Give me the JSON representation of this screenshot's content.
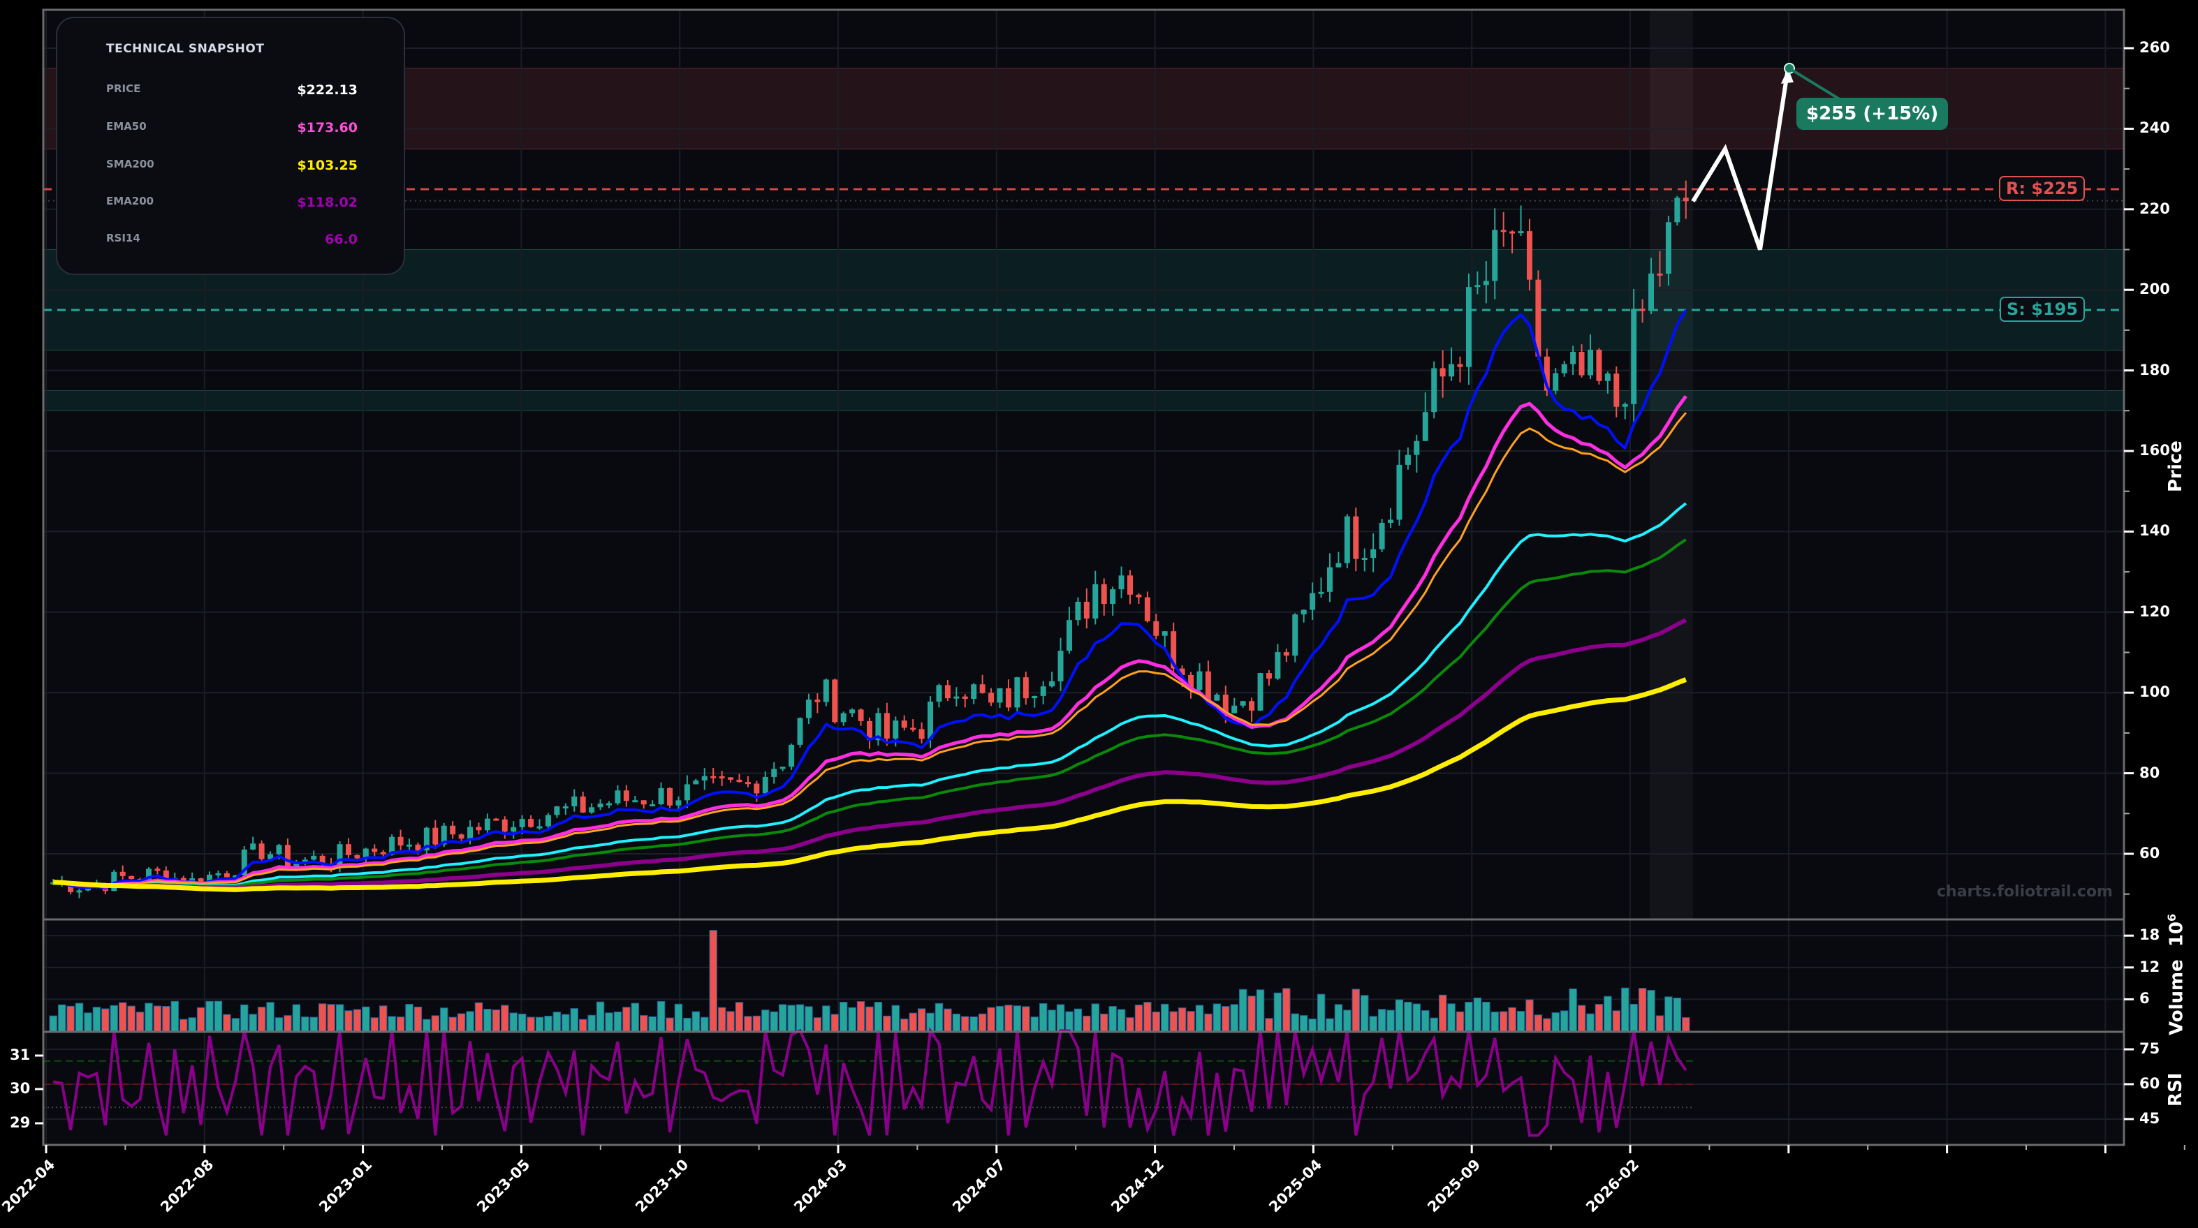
{
  "snapshot": {
    "title": "TECHNICAL SNAPSHOT",
    "rows": [
      {
        "label": "PRICE",
        "value": "$222.13",
        "color": "#ffffff"
      },
      {
        "label": "EMA50",
        "value": "$173.60",
        "color": "#ff4fd8"
      },
      {
        "label": "SMA200",
        "value": "$103.25",
        "color": "#ffee00"
      },
      {
        "label": "EMA200",
        "value": "$118.02",
        "color": "#a000b0"
      },
      {
        "label": "RSI14",
        "value": "66.0",
        "color": "#a000b0"
      }
    ]
  },
  "levels": {
    "resistance": {
      "label": "R: $225",
      "value": 225,
      "color": "#e05252"
    },
    "support": {
      "label": "S: $195",
      "value": 195,
      "color": "#26a69a"
    }
  },
  "target": {
    "label": "$255 (+15%)",
    "value": 255,
    "color": "#1a7a60"
  },
  "watermark": "charts.foliotrail.com",
  "axes": {
    "price_label": "Price",
    "volume_label": "Volume",
    "volume_exp": "6",
    "volume_base": "10",
    "rsi_label": "RSI"
  },
  "colors": {
    "up": "#26a69a",
    "down": "#ef5350",
    "background": "#080a0f",
    "frame": "#6b6b6b"
  },
  "chart_data": {
    "type": "candlestick",
    "title": "",
    "xlabel": "",
    "ylabel": "Price",
    "ylim": [
      48,
      270
    ],
    "x_ticks": [
      "2022-04",
      "2022-08",
      "2023-01",
      "2023-05",
      "2023-10",
      "2024-03",
      "2024-07",
      "2024-12",
      "2025-04",
      "2025-09",
      "2026-02"
    ],
    "y_ticks": [
      60,
      80,
      100,
      120,
      140,
      160,
      180,
      200,
      220,
      240,
      260
    ],
    "candles_monthly_approx": {
      "dates": [
        "2022-04",
        "2022-05",
        "2022-06",
        "2022-07",
        "2022-08",
        "2022-09",
        "2022-10",
        "2022-11",
        "2022-12",
        "2023-01",
        "2023-02",
        "2023-03",
        "2023-04",
        "2023-05",
        "2023-06",
        "2023-07",
        "2023-08",
        "2023-09",
        "2023-10",
        "2023-11",
        "2023-12",
        "2024-01",
        "2024-02",
        "2024-03",
        "2024-04",
        "2024-05",
        "2024-06",
        "2024-07",
        "2024-08",
        "2024-09",
        "2024-10",
        "2024-11",
        "2024-12",
        "2025-01",
        "2025-02",
        "2025-03",
        "2025-04",
        "2025-05",
        "2025-06",
        "2025-07",
        "2025-08",
        "2025-09",
        "2025-10",
        "2025-11",
        "2025-12",
        "2026-01",
        "2026-02",
        "2026-03"
      ],
      "close": [
        53,
        52,
        54,
        55,
        53,
        56,
        61,
        58,
        59,
        61,
        63,
        64,
        66,
        68,
        70,
        71,
        73,
        74,
        75,
        76,
        77,
        84,
        100,
        95,
        89,
        92,
        104,
        96,
        102,
        110,
        127,
        130,
        112,
        104,
        97,
        104,
        118,
        138,
        140,
        160,
        178,
        198,
        215,
        175,
        178,
        172,
        201,
        222
      ]
    },
    "moving_averages": [
      {
        "name": "EMA20",
        "color": "#0010ff",
        "end": 195
      },
      {
        "name": "EMA50",
        "color": "#ff2ee0",
        "end": 173.6
      },
      {
        "name": "EMA60",
        "color": "#ffa020",
        "end": 169.5
      },
      {
        "name": "EMA100",
        "color": "#20f0ff",
        "end": 147
      },
      {
        "name": "SMA150",
        "color": "#0a8a0a",
        "end": 138
      },
      {
        "name": "EMA200",
        "color": "#8a008a",
        "end": 118.02
      },
      {
        "name": "SMA200",
        "color": "#ffee00",
        "end": 103.25
      }
    ],
    "zones": [
      {
        "type": "resistance",
        "from": 235,
        "to": 255
      },
      {
        "type": "support",
        "from": 185,
        "to": 210
      },
      {
        "type": "support",
        "from": 170,
        "to": 175
      }
    ],
    "projection": [
      {
        "x": "2026-03",
        "y": 222
      },
      {
        "x": "2026-04a",
        "y": 235
      },
      {
        "x": "2026-04b",
        "y": 210
      },
      {
        "x": "2026-05",
        "y": 255
      }
    ],
    "volume": {
      "ylabel": "Volume (10^6)",
      "y_ticks": [
        6,
        12,
        18
      ],
      "ylim": [
        0,
        21
      ],
      "typical_range": [
        2,
        8
      ],
      "spike": {
        "date": "2023-05",
        "value": 19
      }
    },
    "rsi": {
      "ylabel": "RSI",
      "right_ticks": [
        45,
        60,
        75
      ],
      "left_ticks": [
        29,
        30,
        31
      ],
      "overbought": 70,
      "midline": 60,
      "oversold": 50,
      "last": 66.0
    }
  }
}
